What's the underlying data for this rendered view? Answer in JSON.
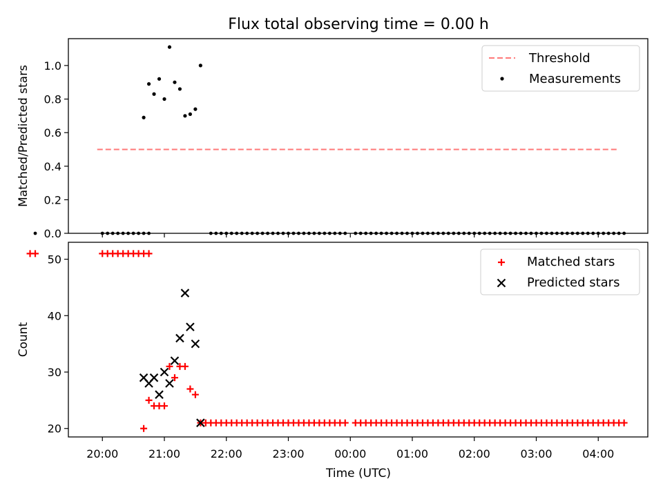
{
  "chart_data": {
    "title": "Flux total observing time = 0.00 h",
    "xlabel": "Time (UTC)",
    "x_ticks": [
      "20:00",
      "21:00",
      "22:00",
      "23:00",
      "00:00",
      "01:00",
      "02:00",
      "03:00",
      "04:00"
    ],
    "colors": {
      "threshold": "#ff7777",
      "measurements": "#000000",
      "matched": "#ff0000",
      "predicted": "#000000"
    },
    "panels": [
      {
        "type": "scatter",
        "ylabel": "Matched/Predicted stars",
        "ylim": [
          0,
          1.16
        ],
        "y_ticks": [
          "0.0",
          "0.2",
          "0.4",
          "0.6",
          "0.8",
          "1.0"
        ],
        "legend_position": "top-right",
        "threshold": {
          "name": "Threshold",
          "value": 0.5,
          "x_start": "19:55",
          "x_end": "04:20"
        },
        "measurements": {
          "name": "Measurements",
          "points": [
            [
              "20:40",
              0.69
            ],
            [
              "20:45",
              0.89
            ],
            [
              "20:50",
              0.83
            ],
            [
              "20:55",
              0.92
            ],
            [
              "21:00",
              0.8
            ],
            [
              "21:05",
              1.11
            ],
            [
              "21:10",
              0.9
            ],
            [
              "21:15",
              0.86
            ],
            [
              "21:20",
              0.7
            ],
            [
              "21:25",
              0.71
            ],
            [
              "21:30",
              0.74
            ],
            [
              "21:35",
              1.0
            ]
          ],
          "zero_runs": [
            [
              "19:55",
              "20:45",
              5
            ],
            [
              "21:45",
              "23:55",
              5
            ],
            [
              "00:05",
              "04:25",
              5
            ]
          ]
        }
      },
      {
        "type": "scatter",
        "ylabel": "Count",
        "ylim": [
          18.5,
          53
        ],
        "y_ticks": [
          "20",
          "30",
          "40",
          "50"
        ],
        "legend_position": "top-right",
        "matched": {
          "name": "Matched stars",
          "points": [
            [
              "20:40",
              20
            ],
            [
              "20:45",
              25
            ],
            [
              "20:50",
              24
            ],
            [
              "20:55",
              24
            ],
            [
              "21:00",
              24
            ],
            [
              "21:05",
              31
            ],
            [
              "21:10",
              29
            ],
            [
              "21:15",
              31
            ],
            [
              "21:20",
              31
            ],
            [
              "21:25",
              27
            ],
            [
              "21:30",
              26
            ],
            [
              "21:35",
              21
            ]
          ],
          "runs": [
            [
              "19:50",
              "20:45",
              5,
              51
            ],
            [
              "21:40",
              "23:55",
              5,
              21
            ],
            [
              "00:05",
              "04:25",
              5,
              21
            ]
          ]
        },
        "predicted": {
          "name": "Predicted stars",
          "points": [
            [
              "20:40",
              29
            ],
            [
              "20:45",
              28
            ],
            [
              "20:50",
              29
            ],
            [
              "20:55",
              26
            ],
            [
              "21:00",
              30
            ],
            [
              "21:05",
              28
            ],
            [
              "21:10",
              32
            ],
            [
              "21:15",
              36
            ],
            [
              "21:20",
              44
            ],
            [
              "21:25",
              38
            ],
            [
              "21:30",
              35
            ],
            [
              "21:35",
              21
            ]
          ]
        }
      }
    ]
  }
}
